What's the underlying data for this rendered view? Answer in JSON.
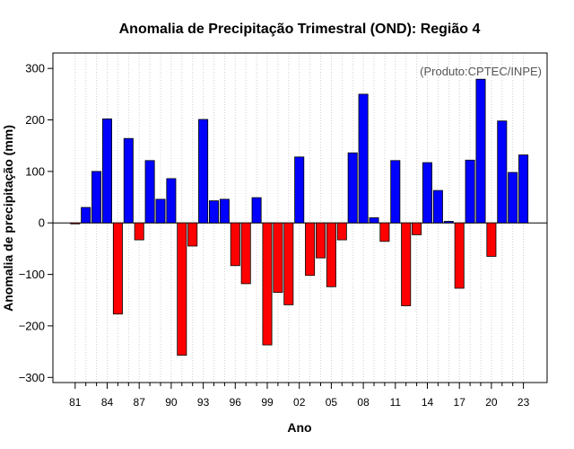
{
  "chart_data": {
    "type": "bar",
    "title": "Anomalia de Precipitação Trimestral (OND): Região 4",
    "xlabel": "Ano",
    "ylabel": "Anomalia de precipitação (mm)",
    "credit": "(Produto:CPTEC/INPE)",
    "ylim": [
      -310,
      330
    ],
    "yticks": [
      -300,
      -200,
      -100,
      0,
      100,
      200,
      300
    ],
    "xtick_labels": [
      "81",
      "84",
      "87",
      "90",
      "93",
      "96",
      "99",
      "02",
      "05",
      "08",
      "11",
      "14",
      "17",
      "20",
      "23"
    ],
    "grid": "vertical dotted",
    "colors": {
      "positive": "#0000ff",
      "negative": "#ff0000",
      "credit": "#555555"
    },
    "years": [
      1981,
      1982,
      1983,
      1984,
      1985,
      1986,
      1987,
      1988,
      1989,
      1990,
      1991,
      1992,
      1993,
      1994,
      1995,
      1996,
      1997,
      1998,
      1999,
      2000,
      2001,
      2002,
      2003,
      2004,
      2005,
      2006,
      2007,
      2008,
      2009,
      2010,
      2011,
      2012,
      2013,
      2014,
      2015,
      2016,
      2017,
      2018,
      2019,
      2020,
      2021,
      2022,
      2023
    ],
    "values": [
      -2,
      30,
      100,
      202,
      -177,
      164,
      -33,
      121,
      46,
      86,
      -257,
      -45,
      201,
      43,
      46,
      -83,
      -118,
      49,
      -237,
      -135,
      -159,
      128,
      -102,
      -68,
      -124,
      -33,
      136,
      250,
      10,
      -36,
      121,
      -161,
      -23,
      117,
      63,
      3,
      -127,
      122,
      279,
      -65,
      198,
      98,
      132
    ]
  }
}
